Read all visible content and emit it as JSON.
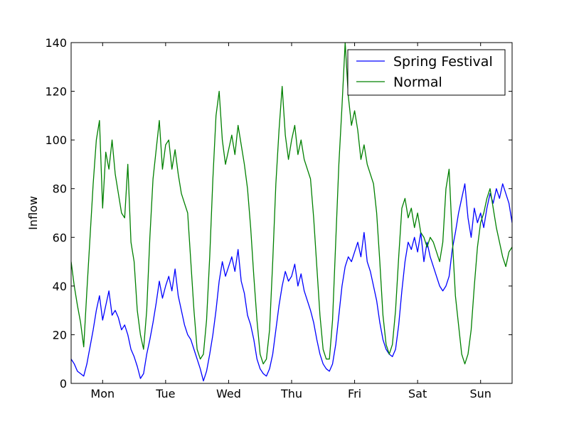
{
  "chart_data": {
    "type": "line",
    "title": "",
    "xlabel": "",
    "ylabel": "Inflow",
    "ylim": [
      0,
      140
    ],
    "yticks": [
      0,
      20,
      40,
      60,
      80,
      100,
      120,
      140
    ],
    "xlim": [
      0,
      7
    ],
    "xticks": [
      {
        "label": "Mon",
        "value": 0.5
      },
      {
        "label": "Tue",
        "value": 1.5
      },
      {
        "label": "Wed",
        "value": 2.5
      },
      {
        "label": "Thu",
        "value": 3.5
      },
      {
        "label": "Fri",
        "value": 4.5
      },
      {
        "label": "Sat",
        "value": 5.5
      },
      {
        "label": "Sun",
        "value": 6.5
      }
    ],
    "grid": false,
    "legend": "top-right",
    "x_unit_note": "day index from start of week",
    "series": [
      {
        "name": "Spring Festival",
        "color": "#0000ff",
        "points": [
          [
            0.0,
            10
          ],
          [
            0.05,
            8
          ],
          [
            0.1,
            5
          ],
          [
            0.15,
            4
          ],
          [
            0.2,
            3
          ],
          [
            0.25,
            8
          ],
          [
            0.3,
            15
          ],
          [
            0.35,
            22
          ],
          [
            0.4,
            30
          ],
          [
            0.45,
            36
          ],
          [
            0.5,
            26
          ],
          [
            0.55,
            32
          ],
          [
            0.6,
            38
          ],
          [
            0.65,
            28
          ],
          [
            0.7,
            30
          ],
          [
            0.75,
            27
          ],
          [
            0.8,
            22
          ],
          [
            0.85,
            24
          ],
          [
            0.9,
            20
          ],
          [
            0.95,
            14
          ],
          [
            1.0,
            11
          ],
          [
            1.05,
            7
          ],
          [
            1.1,
            2
          ],
          [
            1.15,
            4
          ],
          [
            1.2,
            12
          ],
          [
            1.25,
            18
          ],
          [
            1.3,
            25
          ],
          [
            1.35,
            33
          ],
          [
            1.4,
            42
          ],
          [
            1.45,
            35
          ],
          [
            1.5,
            40
          ],
          [
            1.55,
            44
          ],
          [
            1.6,
            38
          ],
          [
            1.65,
            47
          ],
          [
            1.7,
            36
          ],
          [
            1.75,
            30
          ],
          [
            1.8,
            24
          ],
          [
            1.85,
            20
          ],
          [
            1.9,
            18
          ],
          [
            1.95,
            14
          ],
          [
            2.0,
            10
          ],
          [
            2.05,
            6
          ],
          [
            2.1,
            1
          ],
          [
            2.15,
            5
          ],
          [
            2.2,
            12
          ],
          [
            2.25,
            20
          ],
          [
            2.3,
            30
          ],
          [
            2.35,
            42
          ],
          [
            2.4,
            50
          ],
          [
            2.45,
            44
          ],
          [
            2.5,
            48
          ],
          [
            2.55,
            52
          ],
          [
            2.6,
            46
          ],
          [
            2.65,
            55
          ],
          [
            2.7,
            42
          ],
          [
            2.75,
            37
          ],
          [
            2.8,
            28
          ],
          [
            2.85,
            24
          ],
          [
            2.9,
            18
          ],
          [
            2.95,
            10
          ],
          [
            3.0,
            6
          ],
          [
            3.05,
            4
          ],
          [
            3.1,
            3
          ],
          [
            3.15,
            6
          ],
          [
            3.2,
            12
          ],
          [
            3.25,
            22
          ],
          [
            3.3,
            32
          ],
          [
            3.35,
            40
          ],
          [
            3.4,
            46
          ],
          [
            3.45,
            42
          ],
          [
            3.5,
            44
          ],
          [
            3.55,
            49
          ],
          [
            3.6,
            40
          ],
          [
            3.65,
            45
          ],
          [
            3.7,
            38
          ],
          [
            3.75,
            34
          ],
          [
            3.8,
            30
          ],
          [
            3.85,
            25
          ],
          [
            3.9,
            18
          ],
          [
            3.95,
            12
          ],
          [
            4.0,
            8
          ],
          [
            4.05,
            6
          ],
          [
            4.1,
            5
          ],
          [
            4.15,
            8
          ],
          [
            4.2,
            16
          ],
          [
            4.25,
            28
          ],
          [
            4.3,
            40
          ],
          [
            4.35,
            48
          ],
          [
            4.4,
            52
          ],
          [
            4.45,
            50
          ],
          [
            4.5,
            54
          ],
          [
            4.55,
            58
          ],
          [
            4.6,
            52
          ],
          [
            4.65,
            62
          ],
          [
            4.7,
            50
          ],
          [
            4.75,
            46
          ],
          [
            4.8,
            40
          ],
          [
            4.85,
            34
          ],
          [
            4.9,
            25
          ],
          [
            4.95,
            18
          ],
          [
            5.0,
            14
          ],
          [
            5.05,
            12
          ],
          [
            5.1,
            11
          ],
          [
            5.15,
            14
          ],
          [
            5.2,
            24
          ],
          [
            5.25,
            38
          ],
          [
            5.3,
            50
          ],
          [
            5.35,
            58
          ],
          [
            5.4,
            55
          ],
          [
            5.45,
            60
          ],
          [
            5.5,
            54
          ],
          [
            5.55,
            62
          ],
          [
            5.6,
            50
          ],
          [
            5.65,
            58
          ],
          [
            5.7,
            52
          ],
          [
            5.75,
            48
          ],
          [
            5.8,
            44
          ],
          [
            5.85,
            40
          ],
          [
            5.9,
            38
          ],
          [
            5.95,
            40
          ],
          [
            6.0,
            44
          ],
          [
            6.05,
            55
          ],
          [
            6.1,
            62
          ],
          [
            6.15,
            70
          ],
          [
            6.2,
            76
          ],
          [
            6.25,
            82
          ],
          [
            6.3,
            68
          ],
          [
            6.35,
            60
          ],
          [
            6.4,
            72
          ],
          [
            6.45,
            66
          ],
          [
            6.5,
            70
          ],
          [
            6.55,
            64
          ],
          [
            6.6,
            72
          ],
          [
            6.65,
            78
          ],
          [
            6.7,
            74
          ],
          [
            6.75,
            80
          ],
          [
            6.8,
            76
          ],
          [
            6.85,
            82
          ],
          [
            6.9,
            78
          ],
          [
            6.95,
            74
          ],
          [
            7.0,
            66
          ]
        ]
      },
      {
        "name": "Normal",
        "color": "#008000",
        "points": [
          [
            0.0,
            50
          ],
          [
            0.05,
            40
          ],
          [
            0.1,
            32
          ],
          [
            0.15,
            25
          ],
          [
            0.2,
            15
          ],
          [
            0.25,
            38
          ],
          [
            0.3,
            60
          ],
          [
            0.35,
            82
          ],
          [
            0.4,
            100
          ],
          [
            0.45,
            108
          ],
          [
            0.5,
            72
          ],
          [
            0.55,
            95
          ],
          [
            0.6,
            88
          ],
          [
            0.65,
            100
          ],
          [
            0.7,
            86
          ],
          [
            0.75,
            78
          ],
          [
            0.8,
            70
          ],
          [
            0.85,
            68
          ],
          [
            0.9,
            90
          ],
          [
            0.95,
            58
          ],
          [
            1.0,
            50
          ],
          [
            1.05,
            30
          ],
          [
            1.1,
            20
          ],
          [
            1.15,
            14
          ],
          [
            1.2,
            30
          ],
          [
            1.25,
            60
          ],
          [
            1.3,
            84
          ],
          [
            1.35,
            96
          ],
          [
            1.4,
            108
          ],
          [
            1.45,
            88
          ],
          [
            1.5,
            98
          ],
          [
            1.55,
            100
          ],
          [
            1.6,
            88
          ],
          [
            1.65,
            96
          ],
          [
            1.7,
            86
          ],
          [
            1.75,
            78
          ],
          [
            1.8,
            74
          ],
          [
            1.85,
            70
          ],
          [
            1.9,
            50
          ],
          [
            1.95,
            30
          ],
          [
            2.0,
            14
          ],
          [
            2.05,
            10
          ],
          [
            2.1,
            12
          ],
          [
            2.15,
            26
          ],
          [
            2.2,
            52
          ],
          [
            2.25,
            84
          ],
          [
            2.3,
            110
          ],
          [
            2.35,
            120
          ],
          [
            2.4,
            100
          ],
          [
            2.45,
            90
          ],
          [
            2.5,
            96
          ],
          [
            2.55,
            102
          ],
          [
            2.6,
            94
          ],
          [
            2.65,
            106
          ],
          [
            2.7,
            98
          ],
          [
            2.75,
            90
          ],
          [
            2.8,
            80
          ],
          [
            2.85,
            64
          ],
          [
            2.9,
            44
          ],
          [
            2.95,
            26
          ],
          [
            3.0,
            12
          ],
          [
            3.05,
            8
          ],
          [
            3.1,
            10
          ],
          [
            3.15,
            22
          ],
          [
            3.2,
            50
          ],
          [
            3.25,
            82
          ],
          [
            3.3,
            104
          ],
          [
            3.35,
            122
          ],
          [
            3.4,
            102
          ],
          [
            3.45,
            92
          ],
          [
            3.5,
            100
          ],
          [
            3.55,
            106
          ],
          [
            3.6,
            94
          ],
          [
            3.65,
            100
          ],
          [
            3.7,
            92
          ],
          [
            3.75,
            88
          ],
          [
            3.8,
            84
          ],
          [
            3.85,
            68
          ],
          [
            3.9,
            48
          ],
          [
            3.95,
            28
          ],
          [
            4.0,
            14
          ],
          [
            4.05,
            10
          ],
          [
            4.1,
            10
          ],
          [
            4.15,
            26
          ],
          [
            4.2,
            58
          ],
          [
            4.25,
            90
          ],
          [
            4.3,
            114
          ],
          [
            4.35,
            140
          ],
          [
            4.4,
            118
          ],
          [
            4.45,
            106
          ],
          [
            4.5,
            112
          ],
          [
            4.55,
            104
          ],
          [
            4.6,
            92
          ],
          [
            4.65,
            98
          ],
          [
            4.7,
            90
          ],
          [
            4.75,
            86
          ],
          [
            4.8,
            82
          ],
          [
            4.85,
            70
          ],
          [
            4.9,
            50
          ],
          [
            4.95,
            28
          ],
          [
            5.0,
            16
          ],
          [
            5.05,
            12
          ],
          [
            5.1,
            16
          ],
          [
            5.15,
            30
          ],
          [
            5.2,
            52
          ],
          [
            5.25,
            72
          ],
          [
            5.3,
            76
          ],
          [
            5.35,
            68
          ],
          [
            5.4,
            72
          ],
          [
            5.45,
            64
          ],
          [
            5.5,
            70
          ],
          [
            5.55,
            62
          ],
          [
            5.6,
            60
          ],
          [
            5.65,
            56
          ],
          [
            5.7,
            60
          ],
          [
            5.75,
            58
          ],
          [
            5.8,
            54
          ],
          [
            5.85,
            50
          ],
          [
            5.9,
            58
          ],
          [
            5.95,
            80
          ],
          [
            6.0,
            88
          ],
          [
            6.05,
            60
          ],
          [
            6.1,
            36
          ],
          [
            6.15,
            24
          ],
          [
            6.2,
            12
          ],
          [
            6.25,
            8
          ],
          [
            6.3,
            12
          ],
          [
            6.35,
            22
          ],
          [
            6.4,
            40
          ],
          [
            6.45,
            56
          ],
          [
            6.5,
            66
          ],
          [
            6.55,
            70
          ],
          [
            6.6,
            76
          ],
          [
            6.65,
            80
          ],
          [
            6.7,
            72
          ],
          [
            6.75,
            64
          ],
          [
            6.8,
            58
          ],
          [
            6.85,
            52
          ],
          [
            6.9,
            48
          ],
          [
            6.95,
            54
          ],
          [
            7.0,
            56
          ]
        ]
      }
    ]
  }
}
